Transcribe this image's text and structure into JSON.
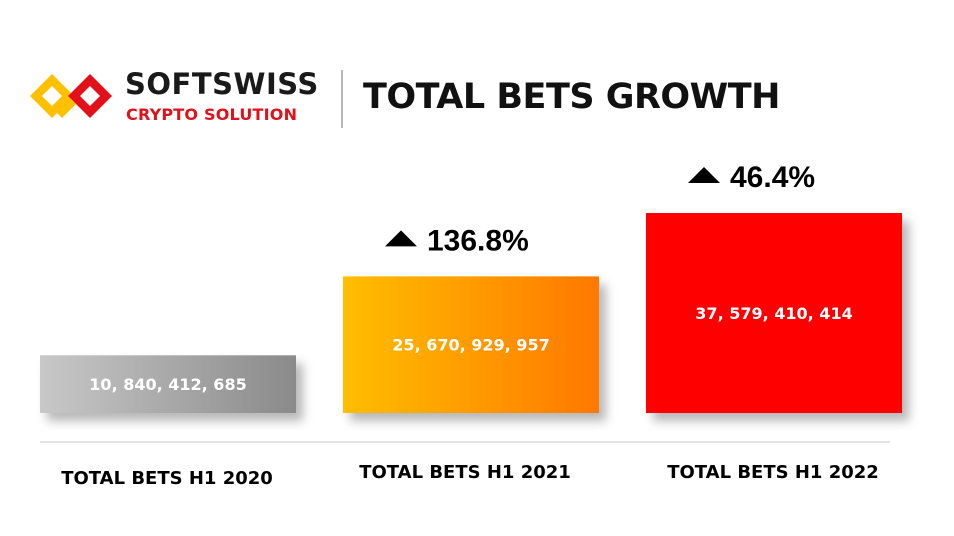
{
  "header": {
    "brand_name": "SOFTSWISS",
    "brand_sub": "CRYPTO SOLUTION",
    "title": "TOTAL BETS GROWTH"
  },
  "icons": {
    "logo": "softswiss-logo-icon",
    "growth_arrow": "triangle-up-icon"
  },
  "colors": {
    "brand_red": "#e3101a",
    "brand_yellow": "#ffc000",
    "bar_2020": [
      "#c8c8c8",
      "#8a8a8a"
    ],
    "bar_2021": [
      "#ffbe00",
      "#ff7800"
    ],
    "bar_2022": "#ff0000"
  },
  "chart_data": {
    "type": "bar",
    "title": "TOTAL BETS GROWTH",
    "categories": [
      "TOTAL BETS H1 2020",
      "TOTAL BETS H1 2021",
      "TOTAL BETS H1 2022"
    ],
    "values": [
      10840412685,
      25670929957,
      37579410414
    ],
    "value_labels": [
      "10, 840, 412, 685",
      "25, 670, 929, 957",
      "37, 579, 410, 414"
    ],
    "growth_labels": [
      "",
      "136.8%",
      "46.4%"
    ],
    "grid": false,
    "legend": "none"
  }
}
